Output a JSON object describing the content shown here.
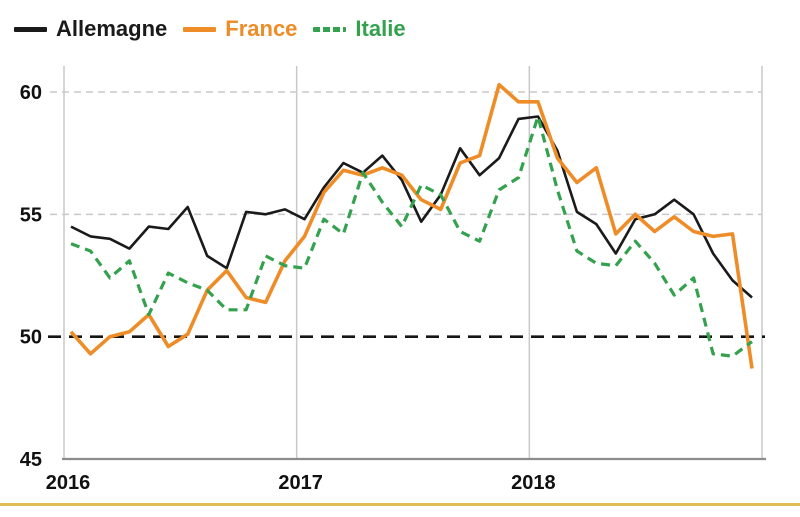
{
  "legend": {
    "items": [
      {
        "label": "Allemagne",
        "color": "#1a1a1a",
        "style": "solid"
      },
      {
        "label": "France",
        "color": "#ee8c28",
        "style": "solid"
      },
      {
        "label": "Italie",
        "color": "#33a14d",
        "style": "dashed"
      }
    ]
  },
  "chart_data": {
    "type": "line",
    "title": "",
    "x_tick_labels": [
      "2016",
      "2017",
      "2018"
    ],
    "points_per_year": 12,
    "y_ticks": [
      45,
      50,
      55,
      60
    ],
    "ylim": [
      45,
      60.5
    ],
    "threshold_value": 50,
    "legend_position": "top-left",
    "grid": {
      "h_dashed_at": [
        55,
        60
      ],
      "gridline_color": "#c9c9c9",
      "axis_color": "#8c8c8c",
      "threshold_color": "#151515"
    },
    "series": [
      {
        "name": "Allemagne",
        "color": "#1a1a1a",
        "style": "solid",
        "width": 2.6,
        "values": [
          54.5,
          54.1,
          54.0,
          53.6,
          54.5,
          54.4,
          55.3,
          53.3,
          52.8,
          55.1,
          55.0,
          55.2,
          54.8,
          56.1,
          57.1,
          56.7,
          57.4,
          56.4,
          54.7,
          55.8,
          57.7,
          56.6,
          57.3,
          58.9,
          59.0,
          57.6,
          55.1,
          54.6,
          53.4,
          54.8,
          55.0,
          55.6,
          55.0,
          53.4,
          52.3,
          51.6
        ]
      },
      {
        "name": "France",
        "color": "#ee8c28",
        "style": "solid",
        "width": 3.6,
        "values": [
          50.2,
          49.3,
          50.0,
          50.2,
          50.9,
          49.6,
          50.1,
          51.9,
          52.7,
          51.6,
          51.4,
          53.1,
          54.1,
          55.9,
          56.8,
          56.6,
          56.9,
          56.6,
          55.6,
          55.2,
          57.1,
          57.4,
          60.3,
          59.6,
          59.6,
          57.3,
          56.3,
          56.9,
          54.2,
          55.0,
          54.3,
          54.9,
          54.3,
          54.1,
          54.2,
          48.7
        ]
      },
      {
        "name": "Italie",
        "color": "#33a14d",
        "style": "dashed",
        "width": 3.2,
        "values": [
          53.8,
          53.5,
          52.4,
          53.1,
          50.9,
          52.6,
          52.2,
          51.9,
          51.1,
          51.1,
          53.3,
          52.9,
          52.8,
          54.8,
          54.2,
          56.7,
          55.5,
          54.5,
          56.2,
          55.8,
          54.3,
          53.9,
          56.0,
          56.5,
          59.0,
          56.0,
          53.5,
          53.0,
          52.9,
          53.9,
          53.0,
          51.7,
          52.4,
          49.3,
          49.2,
          49.8
        ]
      }
    ]
  },
  "footer": {
    "accent_color": "#e0be55"
  }
}
